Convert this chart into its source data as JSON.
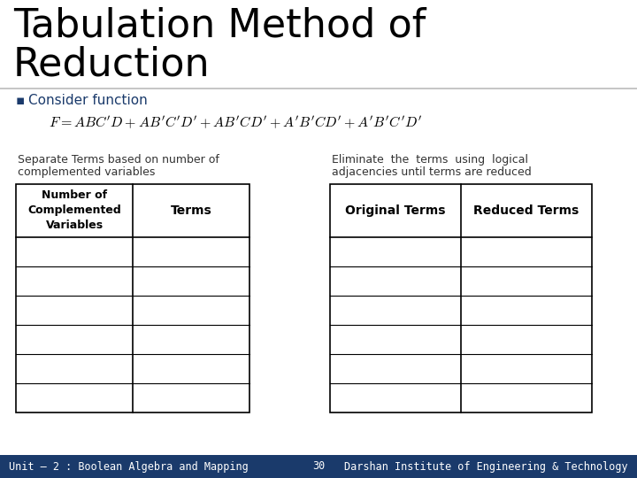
{
  "title_line1": "Tabulation Method of",
  "title_line2": "Reduction",
  "title_fontsize": 32,
  "title_color": "#000000",
  "bullet_text": "Consider function",
  "left_label_line1": "Separate Terms based on number of",
  "left_label_line2": "complemented variables",
  "right_label_line1": "Eliminate  the  terms  using  logical",
  "right_label_line2": "adjacencies until terms are reduced",
  "left_col1_header": "Number of\nComplemented\nVariables",
  "left_col2_header": "Terms",
  "right_col1_header": "Original Terms",
  "right_col2_header": "Reduced Terms",
  "num_data_rows": 6,
  "footer_left": "Unit – 2 : Boolean Algebra and Mapping",
  "footer_center": "30",
  "footer_right": "Darshan Institute of Engineering & Technology",
  "bg_color": "#ffffff",
  "table_border_color": "#000000",
  "footer_bg_color": "#1a3a6b",
  "footer_text_color": "#ffffff",
  "title_underline_color": "#bbbbbb",
  "bullet_color": "#1a3a6b"
}
